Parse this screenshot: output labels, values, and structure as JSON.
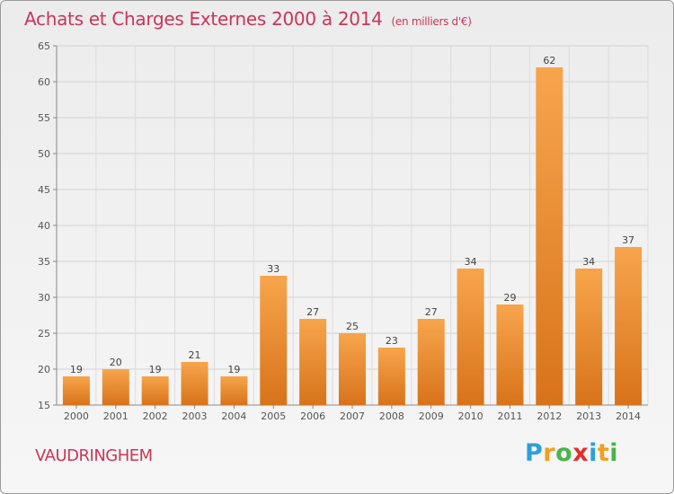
{
  "title": "Achats et Charges Externes 2000 à 2014",
  "subtitle": "(en milliers d'€)",
  "commune": "VAUDRINGHEM",
  "logo": {
    "letters": [
      "P",
      "r",
      "o",
      "x",
      "i",
      "t",
      "i"
    ],
    "colors": [
      "#2d9fd8",
      "#f0a020",
      "#4ab44a",
      "#e0302a",
      "#2d9fd8",
      "#f0a020",
      "#4ab44a"
    ]
  },
  "colors": {
    "bar_top": "#f7a54c",
    "bar_bottom": "#d8731a",
    "title": "#c8365a"
  },
  "chart_data": {
    "type": "bar",
    "categories": [
      "2000",
      "2001",
      "2002",
      "2003",
      "2004",
      "2005",
      "2006",
      "2007",
      "2008",
      "2009",
      "2010",
      "2011",
      "2012",
      "2013",
      "2014"
    ],
    "values": [
      19,
      20,
      19,
      21,
      19,
      33,
      27,
      25,
      23,
      27,
      34,
      29,
      62,
      34,
      37
    ],
    "ylim": [
      15,
      65
    ],
    "yticks": [
      15,
      20,
      25,
      30,
      35,
      40,
      45,
      50,
      55,
      60,
      65
    ],
    "grid": true
  }
}
